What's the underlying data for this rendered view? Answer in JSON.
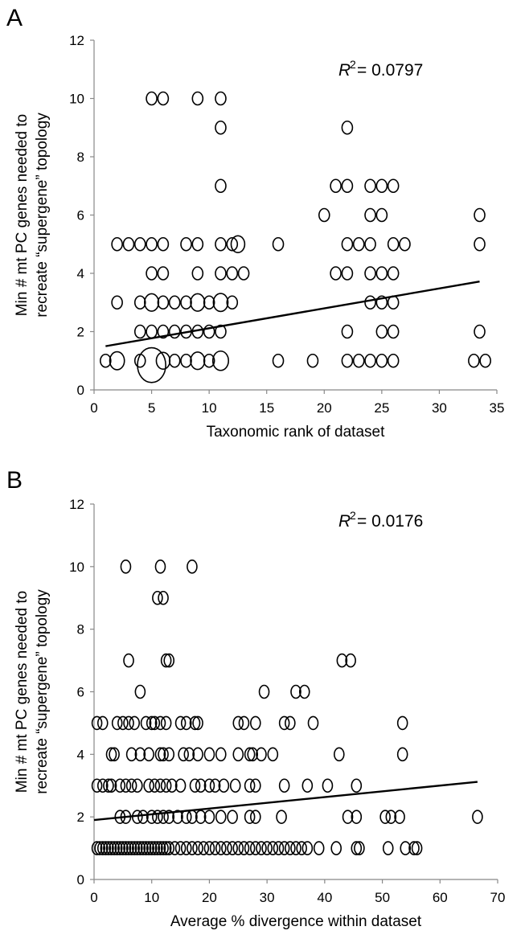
{
  "chart_data": [
    {
      "panel": "A",
      "type": "scatter",
      "xlabel": "Taxonomic rank of dataset",
      "ylabel_line1": "Min # mt PC genes needed to",
      "ylabel_line2": "recreate “supergene” topology",
      "r2_label": "R",
      "r2_value": "= 0.0797",
      "xlim": [
        0,
        35
      ],
      "ylim": [
        0,
        12
      ],
      "xticks": [
        "0",
        "5",
        "10",
        "15",
        "20",
        "25",
        "30",
        "35"
      ],
      "yticks": [
        "0",
        "2",
        "4",
        "6",
        "8",
        "10",
        "12"
      ],
      "trendline": {
        "x": [
          1,
          33.5
        ],
        "y": [
          1.5,
          3.72
        ]
      },
      "points": [
        {
          "x": 5,
          "y": 10
        },
        {
          "x": 6,
          "y": 10
        },
        {
          "x": 9,
          "y": 10
        },
        {
          "x": 11,
          "y": 10
        },
        {
          "x": 11,
          "y": 9
        },
        {
          "x": 22,
          "y": 9
        },
        {
          "x": 11,
          "y": 7
        },
        {
          "x": 21,
          "y": 7
        },
        {
          "x": 22,
          "y": 7
        },
        {
          "x": 24,
          "y": 7
        },
        {
          "x": 25,
          "y": 7
        },
        {
          "x": 26,
          "y": 7
        },
        {
          "x": 20,
          "y": 6
        },
        {
          "x": 24,
          "y": 6
        },
        {
          "x": 25,
          "y": 6
        },
        {
          "x": 33.5,
          "y": 6
        },
        {
          "x": 2,
          "y": 5
        },
        {
          "x": 3,
          "y": 5
        },
        {
          "x": 4,
          "y": 5
        },
        {
          "x": 5,
          "y": 5
        },
        {
          "x": 6,
          "y": 5
        },
        {
          "x": 8,
          "y": 5
        },
        {
          "x": 9,
          "y": 5
        },
        {
          "x": 11,
          "y": 5
        },
        {
          "x": 12,
          "y": 5
        },
        {
          "x": 12.5,
          "y": 5,
          "size": 1.3
        },
        {
          "x": 16,
          "y": 5
        },
        {
          "x": 22,
          "y": 5
        },
        {
          "x": 23,
          "y": 5
        },
        {
          "x": 24,
          "y": 5
        },
        {
          "x": 26,
          "y": 5
        },
        {
          "x": 27,
          "y": 5
        },
        {
          "x": 33.5,
          "y": 5
        },
        {
          "x": 5,
          "y": 4
        },
        {
          "x": 6,
          "y": 4
        },
        {
          "x": 9,
          "y": 4
        },
        {
          "x": 11,
          "y": 4
        },
        {
          "x": 12,
          "y": 4
        },
        {
          "x": 13,
          "y": 4
        },
        {
          "x": 21,
          "y": 4
        },
        {
          "x": 22,
          "y": 4
        },
        {
          "x": 24,
          "y": 4
        },
        {
          "x": 25,
          "y": 4
        },
        {
          "x": 26,
          "y": 4
        },
        {
          "x": 2,
          "y": 3
        },
        {
          "x": 4,
          "y": 3
        },
        {
          "x": 5,
          "y": 3,
          "size": 1.35
        },
        {
          "x": 6,
          "y": 3
        },
        {
          "x": 7,
          "y": 3
        },
        {
          "x": 8,
          "y": 3
        },
        {
          "x": 9,
          "y": 3,
          "size": 1.35
        },
        {
          "x": 10,
          "y": 3
        },
        {
          "x": 11,
          "y": 3,
          "size": 1.4
        },
        {
          "x": 12,
          "y": 3
        },
        {
          "x": 24,
          "y": 3
        },
        {
          "x": 25,
          "y": 3
        },
        {
          "x": 26,
          "y": 3
        },
        {
          "x": 4,
          "y": 2
        },
        {
          "x": 5,
          "y": 2
        },
        {
          "x": 6,
          "y": 2
        },
        {
          "x": 7,
          "y": 2
        },
        {
          "x": 8,
          "y": 2
        },
        {
          "x": 9,
          "y": 2
        },
        {
          "x": 10,
          "y": 2
        },
        {
          "x": 11,
          "y": 2
        },
        {
          "x": 22,
          "y": 2
        },
        {
          "x": 25,
          "y": 2
        },
        {
          "x": 26,
          "y": 2
        },
        {
          "x": 33.5,
          "y": 2
        },
        {
          "x": 1,
          "y": 1
        },
        {
          "x": 2,
          "y": 1,
          "size": 1.4
        },
        {
          "x": 4,
          "y": 1
        },
        {
          "x": 5,
          "y": 0.85,
          "size": 2.7
        },
        {
          "x": 6,
          "y": 1,
          "size": 1.3
        },
        {
          "x": 7,
          "y": 1
        },
        {
          "x": 8,
          "y": 1
        },
        {
          "x": 9,
          "y": 1,
          "size": 1.35
        },
        {
          "x": 10,
          "y": 1
        },
        {
          "x": 11,
          "y": 1,
          "size": 1.5
        },
        {
          "x": 16,
          "y": 1
        },
        {
          "x": 19,
          "y": 1
        },
        {
          "x": 22,
          "y": 1
        },
        {
          "x": 23,
          "y": 1
        },
        {
          "x": 24,
          "y": 1
        },
        {
          "x": 25,
          "y": 1
        },
        {
          "x": 26,
          "y": 1
        },
        {
          "x": 33,
          "y": 1
        },
        {
          "x": 34,
          "y": 1
        }
      ]
    },
    {
      "panel": "B",
      "type": "scatter",
      "xlabel": "Average % divergence within dataset",
      "ylabel_line1": "Min # mt PC genes needed to",
      "ylabel_line2": "recreate “supergene” topology",
      "r2_label": "R",
      "r2_value": "= 0.0176",
      "xlim": [
        0,
        70
      ],
      "ylim": [
        0,
        12
      ],
      "xticks": [
        "0",
        "10",
        "20",
        "30",
        "40",
        "50",
        "60",
        "70"
      ],
      "yticks": [
        "0",
        "2",
        "4",
        "6",
        "8",
        "10",
        "12"
      ],
      "trendline": {
        "x": [
          0,
          66.5
        ],
        "y": [
          1.9,
          3.12
        ]
      },
      "points": [
        {
          "x": 5.5,
          "y": 10
        },
        {
          "x": 11.5,
          "y": 10
        },
        {
          "x": 17,
          "y": 10
        },
        {
          "x": 11,
          "y": 9
        },
        {
          "x": 12,
          "y": 9
        },
        {
          "x": 6,
          "y": 7
        },
        {
          "x": 12.5,
          "y": 7
        },
        {
          "x": 13,
          "y": 7
        },
        {
          "x": 43,
          "y": 7
        },
        {
          "x": 44.5,
          "y": 7
        },
        {
          "x": 8,
          "y": 6
        },
        {
          "x": 29.5,
          "y": 6
        },
        {
          "x": 35,
          "y": 6
        },
        {
          "x": 36.5,
          "y": 6
        },
        {
          "x": 0.5,
          "y": 5
        },
        {
          "x": 1.5,
          "y": 5
        },
        {
          "x": 4,
          "y": 5
        },
        {
          "x": 5,
          "y": 5
        },
        {
          "x": 6,
          "y": 5
        },
        {
          "x": 7,
          "y": 5
        },
        {
          "x": 9,
          "y": 5
        },
        {
          "x": 10,
          "y": 5
        },
        {
          "x": 10.5,
          "y": 5
        },
        {
          "x": 11.5,
          "y": 5
        },
        {
          "x": 12.5,
          "y": 5
        },
        {
          "x": 15,
          "y": 5
        },
        {
          "x": 16,
          "y": 5
        },
        {
          "x": 17.5,
          "y": 5
        },
        {
          "x": 18,
          "y": 5
        },
        {
          "x": 25,
          "y": 5
        },
        {
          "x": 26,
          "y": 5
        },
        {
          "x": 28,
          "y": 5
        },
        {
          "x": 33,
          "y": 5
        },
        {
          "x": 34,
          "y": 5
        },
        {
          "x": 38,
          "y": 5
        },
        {
          "x": 53.5,
          "y": 5
        },
        {
          "x": 3,
          "y": 4
        },
        {
          "x": 3.5,
          "y": 4
        },
        {
          "x": 6.5,
          "y": 4
        },
        {
          "x": 8,
          "y": 4
        },
        {
          "x": 9.5,
          "y": 4
        },
        {
          "x": 11.5,
          "y": 4
        },
        {
          "x": 12,
          "y": 4
        },
        {
          "x": 13,
          "y": 4
        },
        {
          "x": 15.5,
          "y": 4
        },
        {
          "x": 16.5,
          "y": 4
        },
        {
          "x": 18,
          "y": 4
        },
        {
          "x": 20,
          "y": 4
        },
        {
          "x": 22,
          "y": 4
        },
        {
          "x": 25,
          "y": 4
        },
        {
          "x": 27,
          "y": 4
        },
        {
          "x": 27.5,
          "y": 4
        },
        {
          "x": 29,
          "y": 4
        },
        {
          "x": 31,
          "y": 4
        },
        {
          "x": 42.5,
          "y": 4
        },
        {
          "x": 53.5,
          "y": 4
        },
        {
          "x": 0.5,
          "y": 3
        },
        {
          "x": 1.5,
          "y": 3
        },
        {
          "x": 2.5,
          "y": 3
        },
        {
          "x": 3,
          "y": 3
        },
        {
          "x": 4.5,
          "y": 3
        },
        {
          "x": 5.5,
          "y": 3
        },
        {
          "x": 6.5,
          "y": 3
        },
        {
          "x": 7.5,
          "y": 3
        },
        {
          "x": 9.5,
          "y": 3
        },
        {
          "x": 10.5,
          "y": 3
        },
        {
          "x": 11.5,
          "y": 3
        },
        {
          "x": 12.5,
          "y": 3
        },
        {
          "x": 13.5,
          "y": 3
        },
        {
          "x": 15,
          "y": 3
        },
        {
          "x": 17.5,
          "y": 3
        },
        {
          "x": 18.5,
          "y": 3
        },
        {
          "x": 20,
          "y": 3
        },
        {
          "x": 21,
          "y": 3
        },
        {
          "x": 22.5,
          "y": 3
        },
        {
          "x": 24.5,
          "y": 3
        },
        {
          "x": 27,
          "y": 3
        },
        {
          "x": 28,
          "y": 3
        },
        {
          "x": 33,
          "y": 3
        },
        {
          "x": 37,
          "y": 3
        },
        {
          "x": 40.5,
          "y": 3
        },
        {
          "x": 45.5,
          "y": 3
        },
        {
          "x": 4.5,
          "y": 2
        },
        {
          "x": 5.5,
          "y": 2
        },
        {
          "x": 7.5,
          "y": 2
        },
        {
          "x": 8.5,
          "y": 2
        },
        {
          "x": 10,
          "y": 2
        },
        {
          "x": 11,
          "y": 2
        },
        {
          "x": 12,
          "y": 2
        },
        {
          "x": 13,
          "y": 2
        },
        {
          "x": 14.5,
          "y": 2
        },
        {
          "x": 16,
          "y": 2
        },
        {
          "x": 17,
          "y": 2
        },
        {
          "x": 18.5,
          "y": 2
        },
        {
          "x": 20,
          "y": 2
        },
        {
          "x": 22,
          "y": 2
        },
        {
          "x": 24,
          "y": 2
        },
        {
          "x": 27,
          "y": 2
        },
        {
          "x": 28,
          "y": 2
        },
        {
          "x": 32.5,
          "y": 2
        },
        {
          "x": 44,
          "y": 2
        },
        {
          "x": 45.5,
          "y": 2
        },
        {
          "x": 50.5,
          "y": 2
        },
        {
          "x": 51.5,
          "y": 2
        },
        {
          "x": 53,
          "y": 2
        },
        {
          "x": 66.5,
          "y": 2
        },
        {
          "x": 0.5,
          "y": 1
        },
        {
          "x": 1,
          "y": 1
        },
        {
          "x": 1.5,
          "y": 1
        },
        {
          "x": 2,
          "y": 1
        },
        {
          "x": 2.5,
          "y": 1
        },
        {
          "x": 3,
          "y": 1
        },
        {
          "x": 3.5,
          "y": 1
        },
        {
          "x": 4,
          "y": 1
        },
        {
          "x": 4.5,
          "y": 1
        },
        {
          "x": 5,
          "y": 1
        },
        {
          "x": 5.5,
          "y": 1
        },
        {
          "x": 6,
          "y": 1
        },
        {
          "x": 6.5,
          "y": 1
        },
        {
          "x": 7,
          "y": 1
        },
        {
          "x": 7.5,
          "y": 1
        },
        {
          "x": 8,
          "y": 1
        },
        {
          "x": 8.5,
          "y": 1
        },
        {
          "x": 9,
          "y": 1
        },
        {
          "x": 9.5,
          "y": 1
        },
        {
          "x": 10,
          "y": 1
        },
        {
          "x": 10.5,
          "y": 1
        },
        {
          "x": 11,
          "y": 1
        },
        {
          "x": 11.5,
          "y": 1
        },
        {
          "x": 12,
          "y": 1
        },
        {
          "x": 12.5,
          "y": 1
        },
        {
          "x": 13,
          "y": 1
        },
        {
          "x": 14,
          "y": 1
        },
        {
          "x": 15,
          "y": 1
        },
        {
          "x": 16,
          "y": 1
        },
        {
          "x": 17,
          "y": 1
        },
        {
          "x": 18,
          "y": 1
        },
        {
          "x": 19,
          "y": 1
        },
        {
          "x": 20,
          "y": 1
        },
        {
          "x": 21,
          "y": 1
        },
        {
          "x": 22,
          "y": 1
        },
        {
          "x": 23,
          "y": 1
        },
        {
          "x": 24,
          "y": 1
        },
        {
          "x": 25,
          "y": 1
        },
        {
          "x": 26,
          "y": 1
        },
        {
          "x": 27,
          "y": 1
        },
        {
          "x": 28,
          "y": 1
        },
        {
          "x": 29,
          "y": 1
        },
        {
          "x": 30,
          "y": 1
        },
        {
          "x": 31,
          "y": 1
        },
        {
          "x": 32,
          "y": 1
        },
        {
          "x": 33,
          "y": 1
        },
        {
          "x": 34,
          "y": 1
        },
        {
          "x": 35,
          "y": 1
        },
        {
          "x": 36,
          "y": 1
        },
        {
          "x": 37,
          "y": 1
        },
        {
          "x": 39,
          "y": 1
        },
        {
          "x": 42,
          "y": 1
        },
        {
          "x": 45.5,
          "y": 1
        },
        {
          "x": 46,
          "y": 1
        },
        {
          "x": 51,
          "y": 1
        },
        {
          "x": 54,
          "y": 1
        },
        {
          "x": 55.5,
          "y": 1
        },
        {
          "x": 56,
          "y": 1
        }
      ]
    }
  ]
}
